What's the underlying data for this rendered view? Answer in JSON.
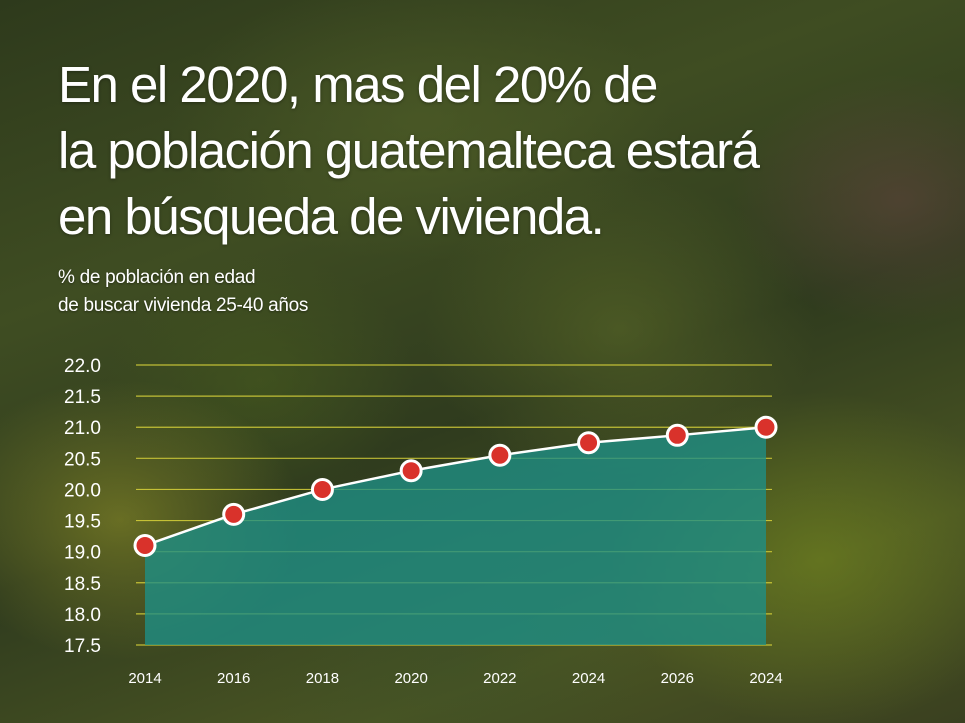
{
  "title_lines": [
    "En el 2020, mas del 20% de",
    "la población guatemalteca estará",
    "en búsqueda de vivienda."
  ],
  "subtitle_lines": [
    "% de población en edad",
    "de buscar vivienda 25-40 años"
  ],
  "colors": {
    "area_fill": "#1e8f86",
    "line": "#ffffff",
    "marker_fill": "#d9322b",
    "marker_stroke": "#ffffff",
    "grid": "#d8d23a"
  },
  "chart_data": {
    "type": "area",
    "categories": [
      "2014",
      "2016",
      "2018",
      "2020",
      "2022",
      "2024",
      "2026",
      "2024"
    ],
    "series": [
      {
        "values": [
          19.1,
          19.6,
          20.0,
          20.3,
          20.55,
          20.75,
          20.87,
          21.0
        ]
      }
    ],
    "ylim": [
      17.5,
      22.0
    ],
    "yticks": [
      "22.0",
      "21.5",
      "21.0",
      "20.5",
      "20.0",
      "19.5",
      "19.0",
      "18.5",
      "18.0",
      "17.5"
    ],
    "grid": true,
    "legend": "none",
    "markers": true
  }
}
